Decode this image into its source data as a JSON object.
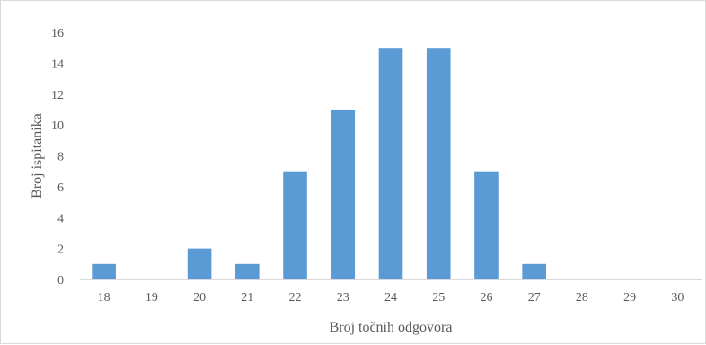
{
  "chart_data": {
    "type": "bar",
    "categories": [
      "18",
      "19",
      "20",
      "21",
      "22",
      "23",
      "24",
      "25",
      "26",
      "27",
      "28",
      "29",
      "30"
    ],
    "values": [
      1,
      0,
      2,
      1,
      7,
      11,
      15,
      15,
      7,
      1,
      0,
      0,
      0
    ],
    "title": "",
    "xlabel": "Broj točnih odgovora",
    "ylabel": "Broj ispitanika",
    "ylim": [
      0,
      16
    ],
    "yticks": [
      0,
      2,
      4,
      6,
      8,
      10,
      12,
      14,
      16
    ],
    "grid": false,
    "legend": "none",
    "bar_color": "#5b9bd5",
    "axis_color": "#d9d9d9",
    "text_color": "#595959"
  }
}
